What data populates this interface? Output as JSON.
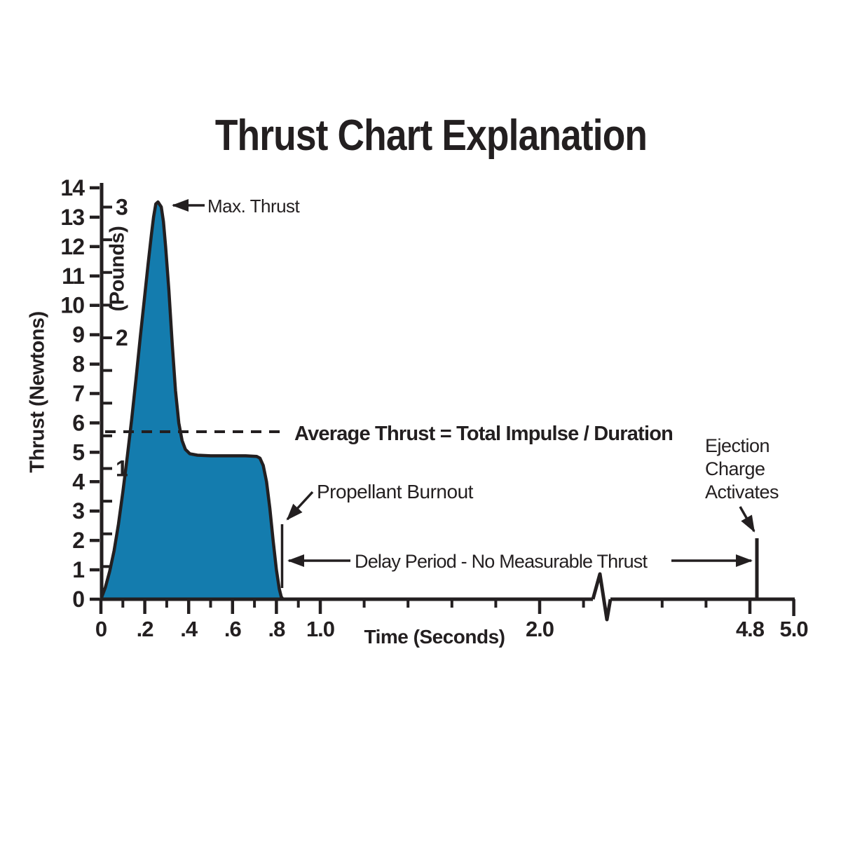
{
  "page": {
    "background": "#ffffff"
  },
  "chart_data": {
    "type": "area",
    "title": "Thrust Chart Explanation",
    "x_label": "Time (Seconds)",
    "y_label_primary": "Thrust (Newtons)",
    "y_label_secondary": "(Pounds)",
    "grid": false,
    "colors": {
      "curve_fill": "#147CAE",
      "line_color": "#231F20"
    },
    "y_axis_newtons": {
      "min": 0,
      "max": 14,
      "labeled_ticks": [
        0,
        1,
        2,
        3,
        4,
        5,
        6,
        7,
        8,
        9,
        10,
        11,
        12,
        13,
        14
      ]
    },
    "y_axis_pounds": {
      "labeled_ticks": [
        1,
        2,
        3
      ],
      "minor_tick_step_lb": 0.25,
      "max_minor_lb": 3.0,
      "newtons_per_pound": 4.448
    },
    "x_axis": {
      "unit": "seconds",
      "labeled_ticks": [
        {
          "t": 0.0,
          "label": "0"
        },
        {
          "t": 0.2,
          "label": ".2"
        },
        {
          "t": 0.4,
          "label": ".4"
        },
        {
          "t": 0.6,
          "label": ".6"
        },
        {
          "t": 0.8,
          "label": ".8"
        },
        {
          "t": 1.0,
          "label": "1.0"
        },
        {
          "t": 2.0,
          "label": "2.0"
        },
        {
          "t": 4.8,
          "label": "4.8"
        },
        {
          "t": 5.0,
          "label": "5.0"
        }
      ],
      "minor_ticks": [
        0.1,
        0.3,
        0.5,
        0.7,
        0.9,
        1.2,
        1.4,
        1.6,
        1.8,
        2.2,
        4.4,
        4.6
      ],
      "axis_break": {
        "after_t": 2.28,
        "resume_t": 4.36
      }
    },
    "series": [
      {
        "name": "thrust-curve",
        "points_seconds_newtons": [
          [
            0,
            0
          ],
          [
            0.02,
            0.4
          ],
          [
            0.04,
            0.95
          ],
          [
            0.06,
            1.65
          ],
          [
            0.08,
            2.55
          ],
          [
            0.1,
            3.65
          ],
          [
            0.12,
            4.85
          ],
          [
            0.14,
            6.1
          ],
          [
            0.16,
            7.5
          ],
          [
            0.18,
            8.95
          ],
          [
            0.2,
            10.35
          ],
          [
            0.215,
            11.4
          ],
          [
            0.23,
            12.4
          ],
          [
            0.24,
            13.0
          ],
          [
            0.25,
            13.45
          ],
          [
            0.26,
            13.52
          ],
          [
            0.275,
            13.35
          ],
          [
            0.285,
            12.85
          ],
          [
            0.295,
            12.0
          ],
          [
            0.31,
            10.5
          ],
          [
            0.325,
            8.7
          ],
          [
            0.34,
            7.1
          ],
          [
            0.355,
            6.0
          ],
          [
            0.37,
            5.4
          ],
          [
            0.385,
            5.1
          ],
          [
            0.405,
            4.95
          ],
          [
            0.44,
            4.9
          ],
          [
            0.5,
            4.88
          ],
          [
            0.58,
            4.88
          ],
          [
            0.66,
            4.88
          ],
          [
            0.71,
            4.86
          ],
          [
            0.725,
            4.8
          ],
          [
            0.74,
            4.55
          ],
          [
            0.755,
            4.0
          ],
          [
            0.77,
            3.1
          ],
          [
            0.785,
            2.0
          ],
          [
            0.8,
            1.0
          ],
          [
            0.813,
            0.35
          ],
          [
            0.822,
            0.08
          ],
          [
            0.83,
            0
          ]
        ]
      }
    ],
    "average_thrust_newtons": 5.7,
    "max_thrust_newtons": 13.5,
    "propellant_burnout_time_s": 0.82,
    "ejection_charge_time_s": 4.8,
    "annotations": {
      "max_thrust": "Max. Thrust",
      "average_thrust": "Average Thrust = Total Impulse / Duration",
      "propellant_burnout": "Propellant Burnout",
      "delay_period": "Delay Period - No Measurable Thrust",
      "ejection_charge": "Ejection\nCharge\nActivates"
    }
  }
}
